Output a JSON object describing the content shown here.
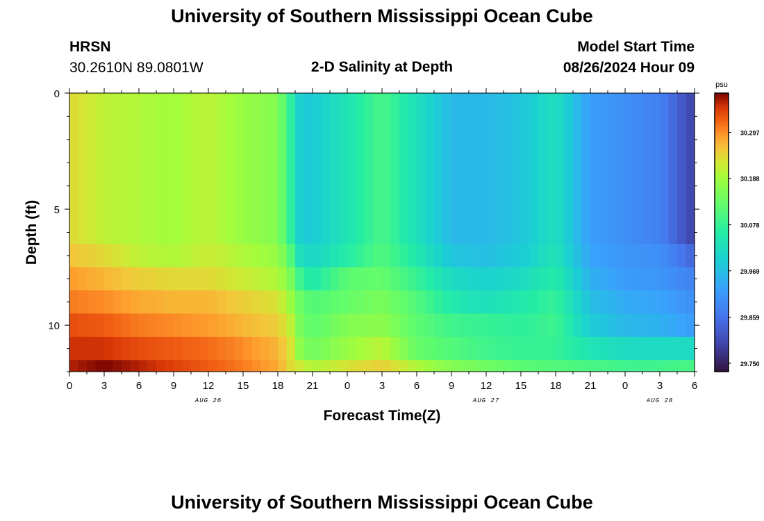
{
  "header": {
    "title": "University of Southern Mississippi Ocean Cube",
    "station": "HRSN",
    "coords": "30.2610N  89.0801W",
    "plot_title": "2-D Salinity at Depth",
    "model_label": "Model Start Time",
    "model_time": "08/26/2024 Hour 09"
  },
  "footer": {
    "title": "University of Southern Mississippi Ocean Cube"
  },
  "chart_data": {
    "type": "heatmap",
    "title": "2-D Salinity at Depth",
    "xlabel": "Forecast Time(Z)",
    "ylabel": "Depth (ft)",
    "x_ticks": [
      "0",
      "3",
      "6",
      "9",
      "12",
      "15",
      "18",
      "21",
      "0",
      "3",
      "6",
      "9",
      "12",
      "15",
      "18",
      "21",
      "0",
      "3",
      "6"
    ],
    "x_range_hours": [
      0,
      54
    ],
    "date_labels": [
      {
        "text": "AUG 26",
        "hour": 12
      },
      {
        "text": "AUG 27",
        "hour": 36
      },
      {
        "text": "AUG 28",
        "hour": 51
      }
    ],
    "y_ticks": [
      0,
      5,
      10
    ],
    "y_range_ft": [
      0,
      12
    ],
    "colorbar": {
      "unit": "psu",
      "range": [
        29.73,
        30.39
      ],
      "ticks": [
        30.297,
        30.188,
        30.078,
        29.969,
        29.859,
        29.75
      ],
      "tick_labels": [
        "30.297",
        "30.188",
        "30.078",
        "29.969",
        "29.859",
        "29.750"
      ]
    },
    "depth_bands_ft": [
      0,
      6.5,
      7.5,
      8.5,
      9.5,
      10.5,
      11.5,
      12
    ],
    "time_hours": [
      0,
      3,
      6,
      9,
      12,
      15,
      18,
      19,
      20,
      21,
      24,
      27,
      30,
      33,
      36,
      39,
      42,
      45,
      48,
      51,
      54
    ],
    "salinity": [
      [
        30.24,
        30.21,
        30.2,
        30.19,
        30.21,
        30.18,
        30.16,
        30.08,
        29.99,
        29.99,
        30.04,
        30.1,
        30.03,
        29.96,
        29.96,
        29.98,
        30.03,
        29.92,
        29.9,
        29.88,
        29.79
      ],
      [
        30.26,
        30.24,
        30.21,
        30.2,
        30.22,
        30.2,
        30.18,
        30.12,
        30.02,
        30.01,
        30.06,
        30.11,
        30.05,
        29.98,
        29.97,
        29.99,
        30.04,
        29.93,
        29.91,
        29.9,
        29.84
      ],
      [
        30.29,
        30.27,
        30.25,
        30.24,
        30.24,
        30.22,
        30.2,
        30.16,
        30.08,
        30.05,
        30.12,
        30.13,
        30.08,
        30.02,
        30.0,
        30.02,
        30.06,
        29.95,
        29.92,
        29.91,
        29.88
      ],
      [
        30.31,
        30.3,
        30.28,
        30.27,
        30.27,
        30.25,
        30.23,
        30.19,
        30.13,
        30.11,
        30.13,
        30.15,
        30.11,
        30.05,
        30.03,
        30.05,
        30.08,
        29.97,
        29.94,
        29.93,
        29.9
      ],
      [
        30.34,
        30.33,
        30.31,
        30.3,
        30.29,
        30.27,
        30.25,
        30.22,
        30.14,
        30.12,
        30.16,
        30.17,
        30.12,
        30.09,
        30.08,
        30.07,
        30.09,
        29.99,
        29.96,
        29.95,
        29.92
      ],
      [
        30.36,
        30.36,
        30.34,
        30.33,
        30.32,
        30.3,
        30.27,
        30.24,
        30.16,
        30.14,
        30.18,
        30.21,
        30.13,
        30.11,
        30.09,
        30.08,
        30.08,
        30.04,
        30.02,
        30.02,
        30.02
      ],
      [
        30.37,
        30.39,
        30.37,
        30.35,
        30.33,
        30.31,
        30.28,
        30.24,
        30.22,
        30.2,
        30.23,
        30.25,
        30.2,
        30.16,
        30.14,
        30.12,
        30.11,
        30.1,
        30.09,
        30.09,
        30.1
      ]
    ]
  }
}
